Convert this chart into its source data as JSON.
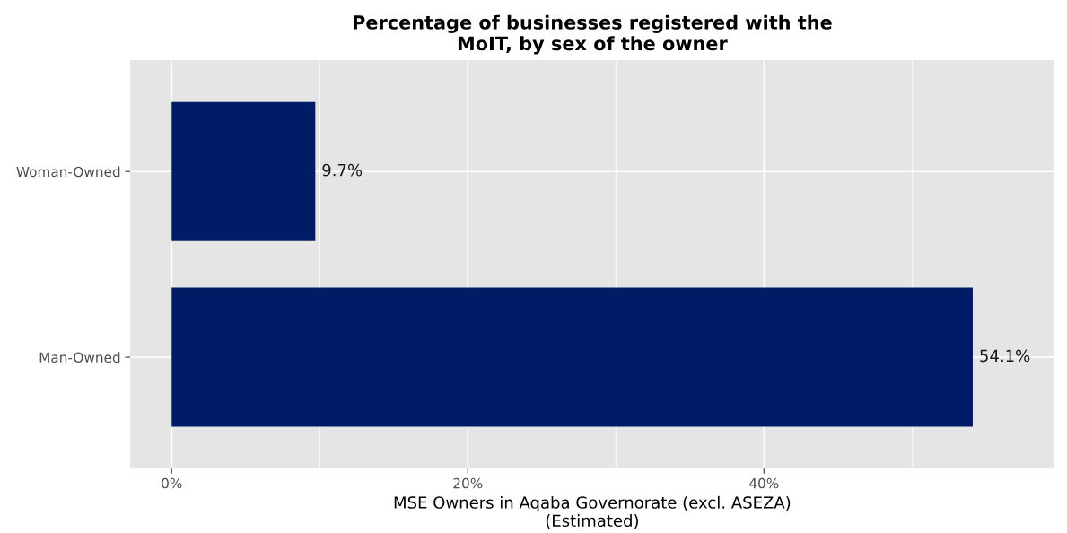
{
  "chart_data": {
    "type": "bar",
    "orientation": "horizontal",
    "title": "Percentage of businesses registered with the\nMoIT, by sex of the owner",
    "xlabel": "MSE Owners in Aqaba Governorate (excl. ASEZA)\n(Estimated)",
    "categories": [
      "Woman-Owned",
      "Man-Owned"
    ],
    "values": [
      9.7,
      54.1
    ],
    "value_labels": [
      "9.7%",
      "54.1%"
    ],
    "color": "#011c66",
    "xlim": [
      -2.8,
      59.6
    ],
    "xticks": [
      {
        "value": 0,
        "label": "0%"
      },
      {
        "value": 10,
        "label": null
      },
      {
        "value": 20,
        "label": "20%"
      },
      {
        "value": 30,
        "label": null
      },
      {
        "value": 40,
        "label": "40%"
      },
      {
        "value": 50,
        "label": null
      }
    ],
    "grid": true
  }
}
